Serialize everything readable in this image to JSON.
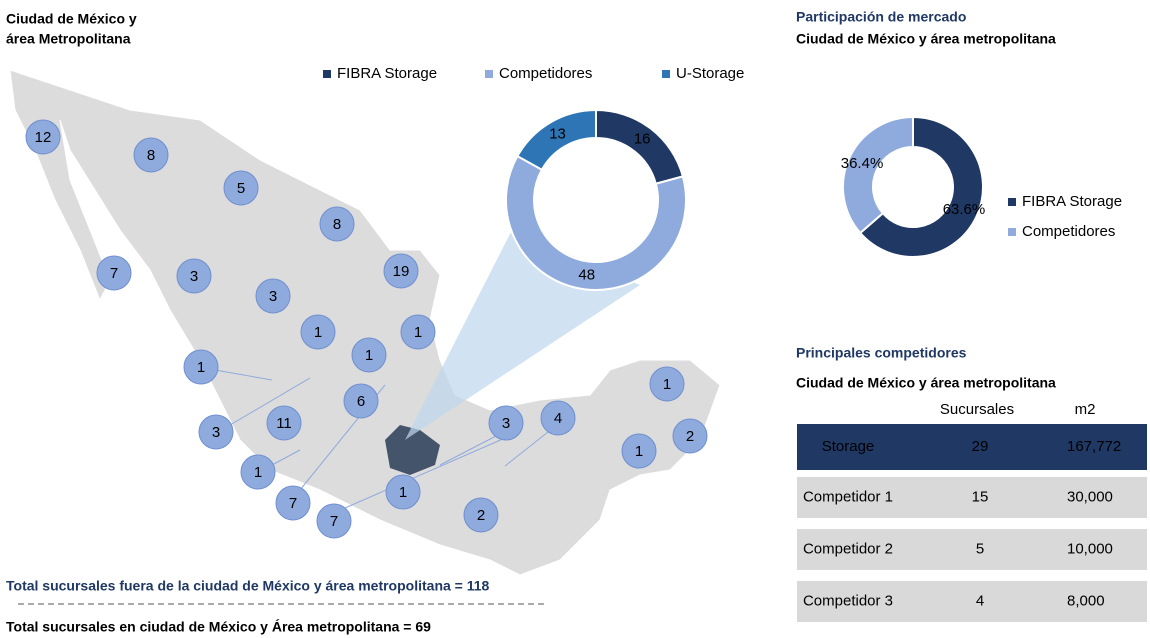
{
  "map": {
    "title_lines": [
      "Ciudad de México y",
      "área Metropolitana"
    ],
    "bubbles": [
      12,
      8,
      5,
      8,
      7,
      3,
      3,
      19,
      1,
      1,
      1,
      1,
      6,
      11,
      3,
      3,
      4,
      1,
      2,
      1,
      1,
      1,
      2,
      7,
      7
    ]
  },
  "chart_data": [
    {
      "type": "donut",
      "categories": [
        "FIBRA Storage",
        "Competidores",
        "U-Storage"
      ],
      "values": [
        16,
        48,
        13
      ],
      "colors": [
        "#1f3864",
        "#8faadc",
        "#2e75b6"
      ],
      "legend": "top"
    },
    {
      "type": "donut",
      "title": "Participación de mercado",
      "subtitle": "Ciudad de México y área metropolitana",
      "categories": [
        "FIBRA Storage",
        "Competidores"
      ],
      "values": [
        63.6,
        36.4
      ],
      "value_labels": [
        "63.6%",
        "36.4%"
      ],
      "colors": [
        "#1f3864",
        "#8faadc"
      ],
      "legend": "right"
    }
  ],
  "table": {
    "title": "Principales competidores",
    "subtitle": "Ciudad de México y área metropolitana",
    "header": [
      "Sucursales",
      "m2"
    ],
    "rows": [
      [
        "Storage",
        "29",
        "167,772"
      ],
      [
        "Competidor 1",
        "15",
        "30,000"
      ],
      [
        "Competidor 2",
        "5",
        "10,000"
      ],
      [
        "Competidor 3",
        "4",
        "8,000"
      ]
    ]
  },
  "footer": [
    "Total sucursales fuera de la ciudad de México y área metropolitana = 118",
    "Total sucursales en ciudad de México y Área metropolitana = 69"
  ]
}
